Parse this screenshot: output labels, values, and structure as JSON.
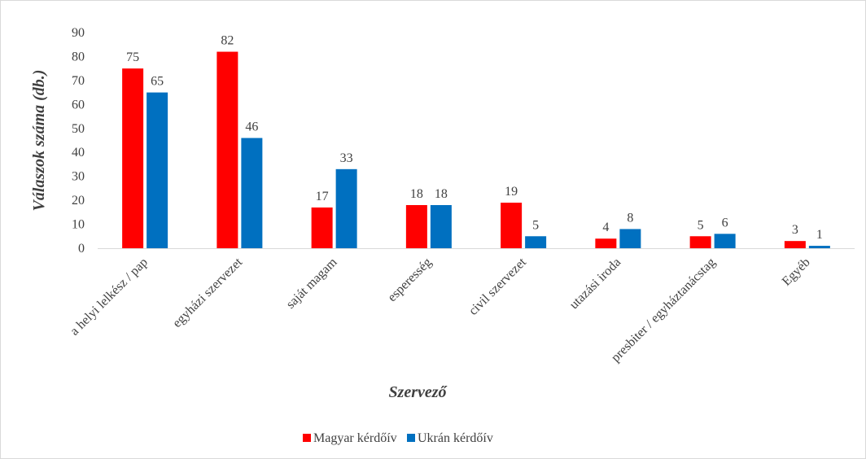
{
  "chart_data": {
    "type": "bar",
    "xlabel": "Szervező",
    "ylabel": "Válaszok száma (db.)",
    "ylim": [
      0,
      90
    ],
    "yticks": [
      0,
      10,
      20,
      30,
      40,
      50,
      60,
      70,
      80,
      90
    ],
    "grid": false,
    "legend_position": "bottom",
    "categories": [
      "a helyi lelkész / pap",
      "egyházi szervezet",
      "saját magam",
      "esperesség",
      "civil szervezet",
      "utazási iroda",
      "presbiter / egyháztanácstag",
      "Egyéb"
    ],
    "series": [
      {
        "name": "Magyar kérdőív",
        "color": "#ff0000",
        "values": [
          75,
          82,
          17,
          18,
          19,
          4,
          5,
          3
        ]
      },
      {
        "name": "Ukrán kérdőív",
        "color": "#0070c0",
        "values": [
          65,
          46,
          33,
          18,
          5,
          8,
          6,
          1
        ]
      }
    ]
  }
}
